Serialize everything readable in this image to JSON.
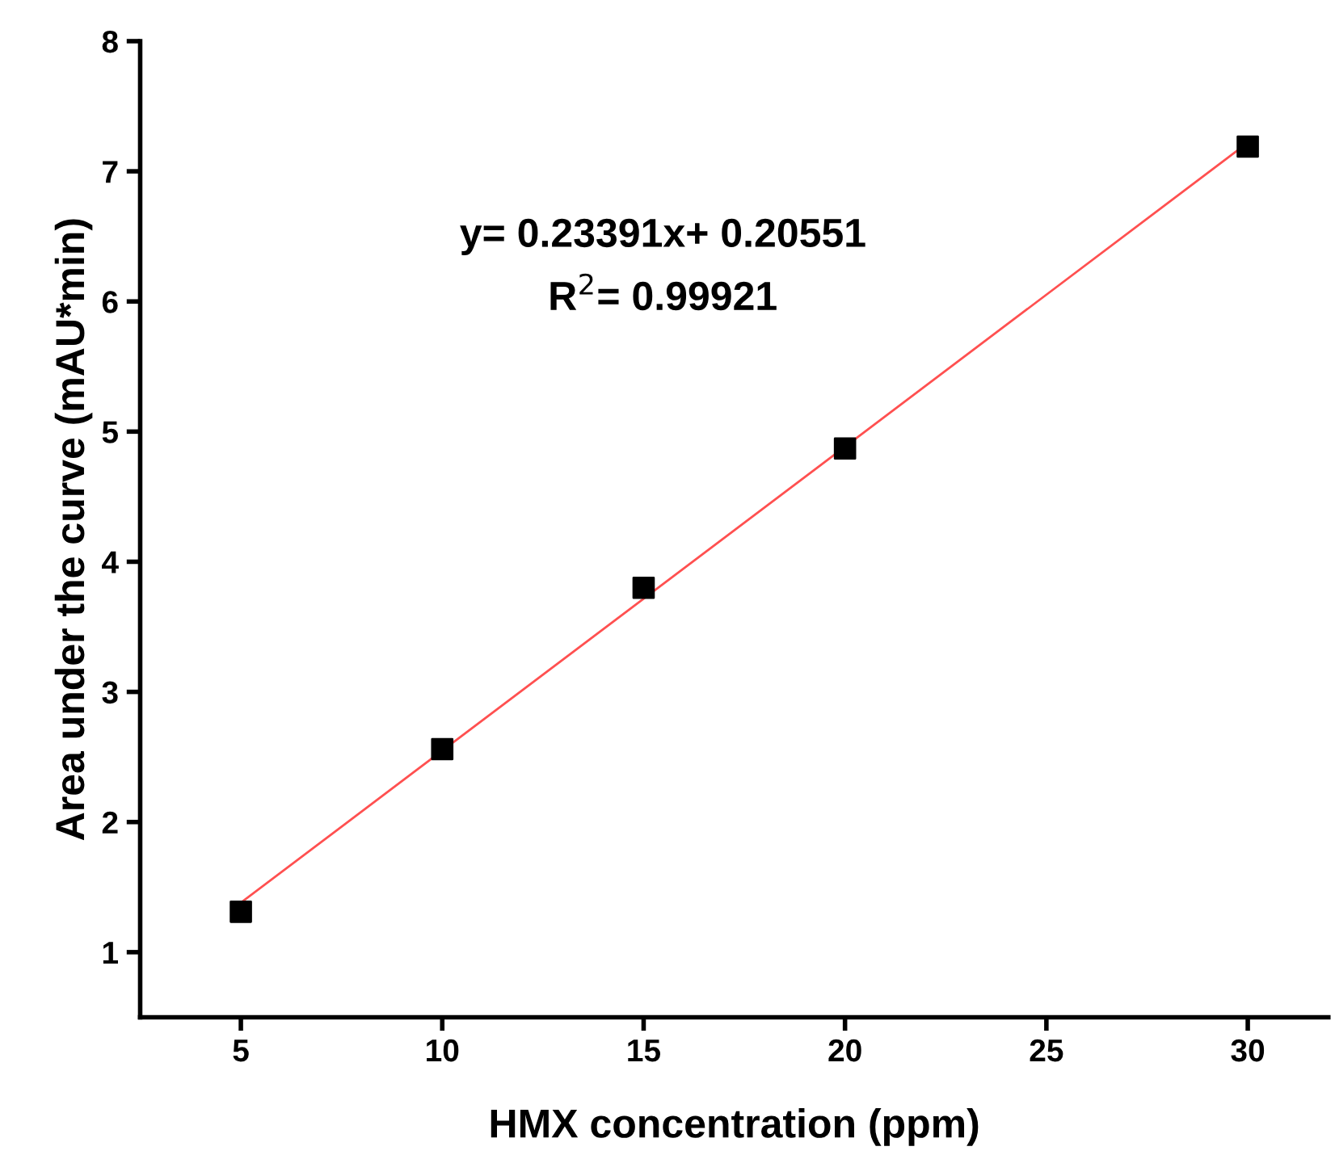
{
  "chart_data": {
    "type": "scatter",
    "xlabel": "HMX concentration (ppm)",
    "ylabel": "Area under the curve (mAU*min)",
    "x": [
      5,
      10,
      15,
      20,
      30
    ],
    "series": [
      {
        "type": "scatter",
        "color": "#000000",
        "marker": "square",
        "values": [
          1.31,
          2.56,
          3.8,
          4.87,
          7.19
        ]
      },
      {
        "type": "line",
        "color": "#ff5050",
        "marker": "none",
        "x": [
          5,
          30
        ],
        "values": [
          1.38,
          7.22
        ]
      }
    ],
    "annotations": [
      "y= 0.23391x+ 0.20551",
      "R$^{2}$= 0.99921"
    ],
    "xlim": [
      2.5,
      32
    ],
    "ylim": [
      0.5,
      8
    ],
    "xticks": [
      5,
      10,
      15,
      20,
      25,
      30
    ],
    "yticks": [
      1,
      2,
      3,
      4,
      5,
      6,
      7,
      8
    ],
    "grid": false,
    "legend": false
  }
}
